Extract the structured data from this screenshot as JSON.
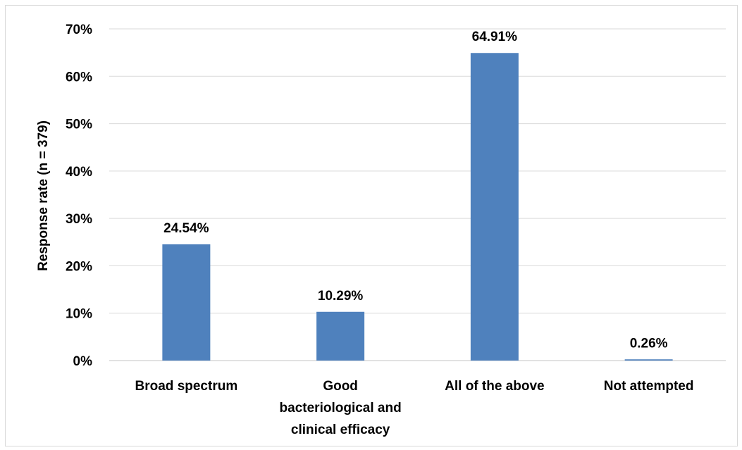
{
  "chart_data": {
    "type": "bar",
    "title": "",
    "xlabel": "",
    "ylabel": "Response rate (n = 379)",
    "ylim": [
      0,
      70
    ],
    "yticks": [
      "0%",
      "10%",
      "20%",
      "30%",
      "40%",
      "50%",
      "60%",
      "70%"
    ],
    "categories": [
      [
        "Broad spectrum"
      ],
      [
        "Good",
        "bacteriological and",
        "clinical efficacy"
      ],
      [
        "All of the above"
      ],
      [
        "Not attempted"
      ]
    ],
    "values": [
      24.54,
      10.29,
      64.91,
      0.26
    ],
    "data_labels": [
      "24.54%",
      "10.29%",
      "64.91%",
      "0.26%"
    ],
    "grid": true,
    "legend": "none",
    "colors": {
      "bar": "#4f81bd",
      "grid": "#d9d9d9"
    }
  }
}
